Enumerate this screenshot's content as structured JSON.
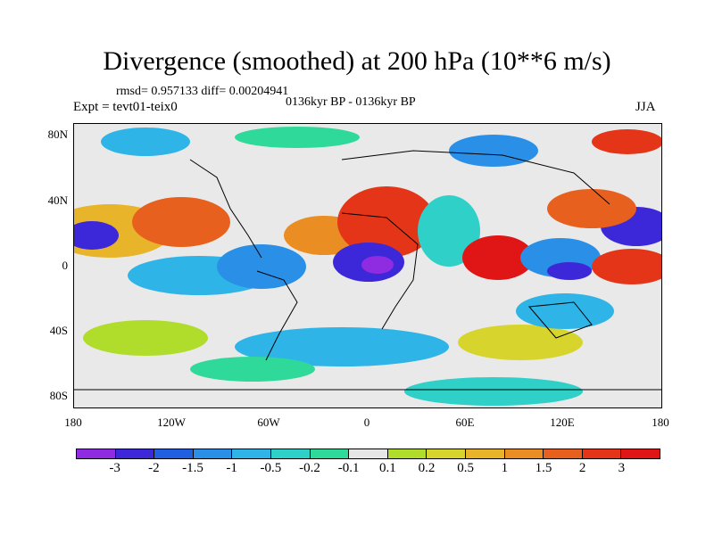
{
  "title": "Divergence (smoothed) at 200 hPa (10**6 m/s)",
  "rmsd_line": "rmsd= 0.957133 diff= 0.00204941",
  "expt_line": "Expt = tevt01-teix0",
  "period_line": "0136kyr BP - 0136kyr BP",
  "season": "JJA",
  "y_ticks": [
    "80N",
    "40N",
    "0",
    "40S",
    "80S"
  ],
  "x_ticks": [
    "180",
    "120W",
    "60W",
    "0",
    "60E",
    "120E",
    "180"
  ],
  "colorbar": {
    "labels": [
      "-3",
      "-2",
      "-1.5",
      "-1",
      "-0.5",
      "-0.2",
      "-0.1",
      "0.1",
      "0.2",
      "0.5",
      "1",
      "1.5",
      "2",
      "3"
    ],
    "colors": [
      "#8f2be0",
      "#3c28d8",
      "#1f5fe0",
      "#2a8fe6",
      "#2eb4e6",
      "#2fd0c8",
      "#2fd99a",
      "#e6e6e6",
      "#b0dc2c",
      "#d7d52d",
      "#e8b52a",
      "#ea8d22",
      "#e8601d",
      "#e43518",
      "#e01616"
    ]
  }
}
